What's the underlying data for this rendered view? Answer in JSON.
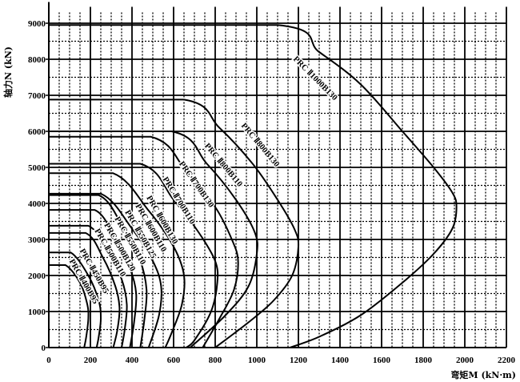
{
  "chart_data": {
    "type": "line",
    "title": "",
    "xlabel": "弯矩M (kN·m)",
    "ylabel": "轴力N (kN)",
    "xlim": [
      0,
      2200
    ],
    "ylim": [
      0,
      9500
    ],
    "xticks": [
      0,
      200,
      400,
      600,
      800,
      1000,
      1200,
      1400,
      1600,
      1800,
      2000,
      2200
    ],
    "yticks": [
      0,
      1000,
      2000,
      3000,
      4000,
      5000,
      6000,
      7000,
      8000,
      9000
    ],
    "grid": true,
    "series": [
      {
        "name": "PRC Ⅱ400B95",
        "points": [
          [
            0,
            2290
          ],
          [
            80,
            2290
          ],
          [
            150,
            1800
          ],
          [
            185,
            1200
          ],
          [
            190,
            800
          ],
          [
            180,
            300
          ],
          [
            170,
            0
          ]
        ]
      },
      {
        "name": "PRC Ⅱ450B95",
        "points": [
          [
            0,
            2640
          ],
          [
            105,
            2640
          ],
          [
            190,
            2000
          ],
          [
            240,
            1300
          ],
          [
            250,
            800
          ],
          [
            240,
            300
          ],
          [
            230,
            0
          ]
        ]
      },
      {
        "name": "PRC Ⅱ500B110",
        "points": [
          [
            0,
            3180
          ],
          [
            177,
            3180
          ],
          [
            260,
            2500
          ],
          [
            320,
            1700
          ],
          [
            340,
            1100
          ],
          [
            330,
            500
          ],
          [
            310,
            0
          ]
        ]
      },
      {
        "name": "PRC Ⅱ500B120",
        "points": [
          [
            0,
            3380
          ],
          [
            190,
            3380
          ],
          [
            290,
            2600
          ],
          [
            350,
            1900
          ],
          [
            375,
            1200
          ],
          [
            365,
            500
          ],
          [
            350,
            0
          ]
        ]
      },
      {
        "name": "PRC Ⅱ550B110",
        "points": [
          [
            0,
            3820
          ],
          [
            220,
            3820
          ],
          [
            320,
            3000
          ],
          [
            390,
            2200
          ],
          [
            420,
            1500
          ],
          [
            410,
            700
          ],
          [
            390,
            0
          ]
        ]
      },
      {
        "name": "PRC Ⅱ550B125",
        "points": [
          [
            0,
            4230
          ],
          [
            240,
            4230
          ],
          [
            360,
            3300
          ],
          [
            440,
            2400
          ],
          [
            470,
            1600
          ],
          [
            460,
            800
          ],
          [
            440,
            0
          ]
        ]
      },
      {
        "name": "PRC Ⅱ600B110",
        "points": [
          [
            0,
            4270
          ],
          [
            250,
            4270
          ],
          [
            400,
            3300
          ],
          [
            500,
            2400
          ],
          [
            540,
            1700
          ],
          [
            530,
            900
          ],
          [
            480,
            0
          ]
        ]
      },
      {
        "name": "PRC Ⅱ600B130",
        "points": [
          [
            0,
            4840
          ],
          [
            308,
            4840
          ],
          [
            480,
            3800
          ],
          [
            600,
            2800
          ],
          [
            650,
            2000
          ],
          [
            640,
            1200
          ],
          [
            590,
            400
          ],
          [
            560,
            0
          ]
        ]
      },
      {
        "name": "PRC Ⅱ700B110",
        "points": [
          [
            0,
            5100
          ],
          [
            440,
            5100
          ],
          [
            600,
            4100
          ],
          [
            720,
            3200
          ],
          [
            800,
            2400
          ],
          [
            810,
            1800
          ],
          [
            780,
            1000
          ],
          [
            700,
            200
          ],
          [
            660,
            0
          ]
        ]
      },
      {
        "name": "PRC Ⅱ700B130",
        "points": [
          [
            0,
            5850
          ],
          [
            490,
            5850
          ],
          [
            660,
            4900
          ],
          [
            800,
            3900
          ],
          [
            880,
            3000
          ],
          [
            910,
            2400
          ],
          [
            890,
            1600
          ],
          [
            820,
            800
          ],
          [
            740,
            0
          ]
        ]
      },
      {
        "name": "PRC Ⅱ800B110",
        "points": [
          [
            0,
            6000
          ],
          [
            590,
            6000
          ],
          [
            760,
            5100
          ],
          [
            900,
            4100
          ],
          [
            990,
            3200
          ],
          [
            1000,
            2600
          ],
          [
            960,
            1700
          ],
          [
            850,
            900
          ],
          [
            680,
            0
          ]
        ]
      },
      {
        "name": "PRC Ⅱ800B130",
        "points": [
          [
            0,
            6880
          ],
          [
            650,
            6880
          ],
          [
            820,
            6100
          ],
          [
            980,
            5100
          ],
          [
            1100,
            4100
          ],
          [
            1180,
            3300
          ],
          [
            1200,
            2800
          ],
          [
            1170,
            2000
          ],
          [
            1080,
            1300
          ],
          [
            960,
            700
          ],
          [
            800,
            0
          ]
        ]
      },
      {
        "name": "PRC Ⅱ1000B130",
        "points": [
          [
            0,
            8950
          ],
          [
            1100,
            8950
          ],
          [
            1300,
            8200
          ],
          [
            1500,
            7300
          ],
          [
            1700,
            6000
          ],
          [
            1850,
            5000
          ],
          [
            1940,
            4300
          ],
          [
            1960,
            3900
          ],
          [
            1940,
            3300
          ],
          [
            1850,
            2600
          ],
          [
            1700,
            1800
          ],
          [
            1500,
            900
          ],
          [
            1300,
            300
          ],
          [
            1160,
            0
          ]
        ]
      }
    ]
  }
}
